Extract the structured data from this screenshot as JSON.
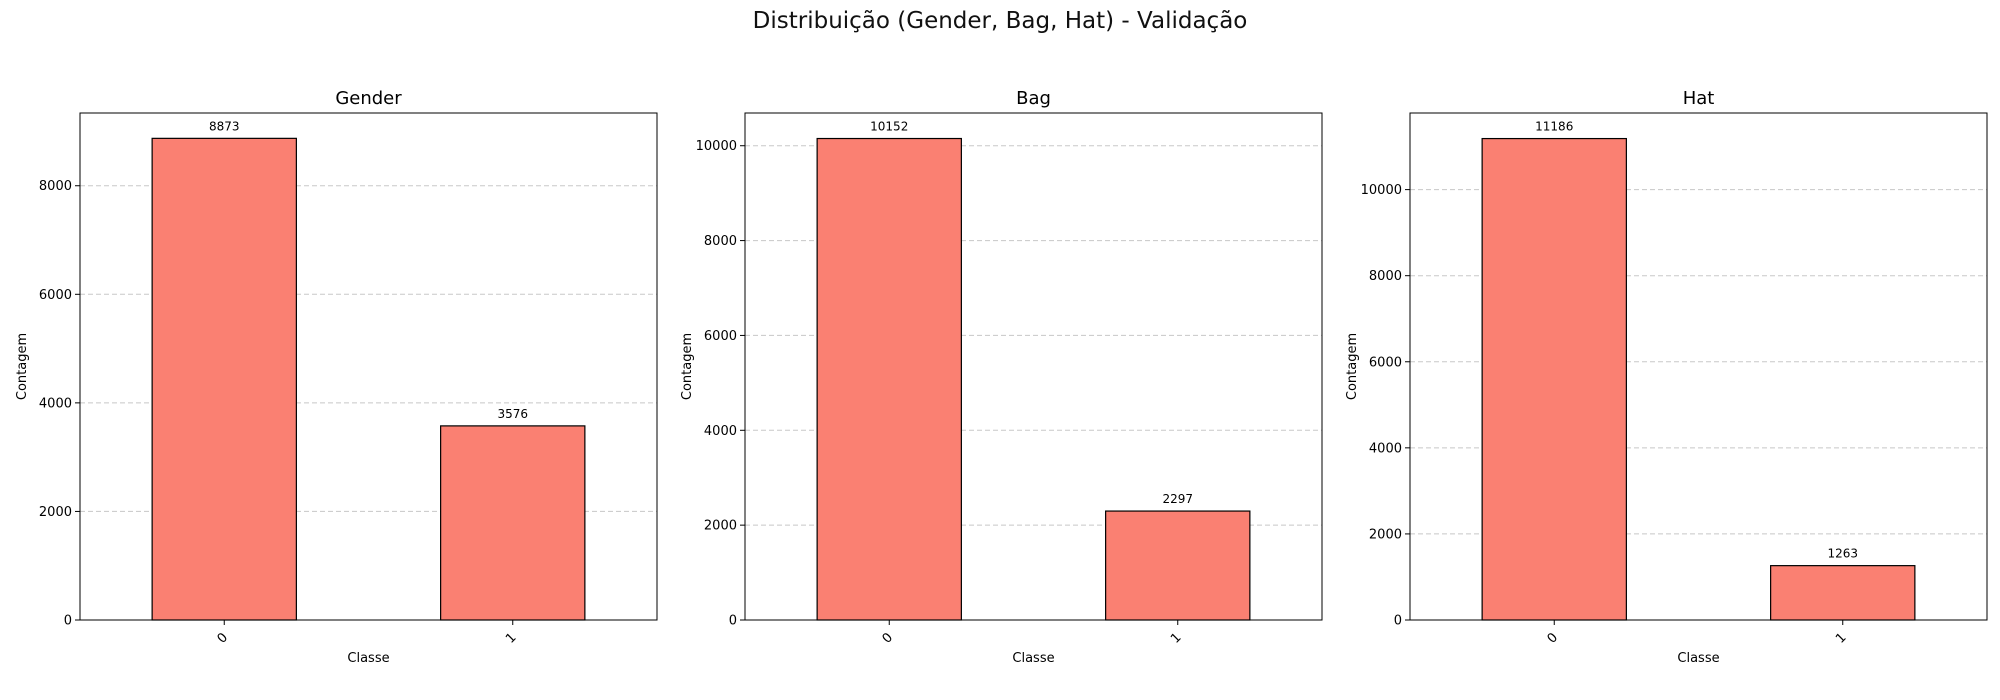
{
  "figure": {
    "title": "Distribuição (Gender, Bag, Hat) - Validação"
  },
  "colors": {
    "bar_fill": "#fa8072",
    "bar_edge": "#000000",
    "grid": "#c8c8c8"
  },
  "chart_data": [
    {
      "type": "bar",
      "title": "Gender",
      "xlabel": "Classe",
      "ylabel": "Contagem",
      "categories": [
        "0",
        "1"
      ],
      "values": [
        8873,
        3576
      ],
      "ylim": [
        0,
        9340
      ],
      "yticks": [
        0,
        2000,
        4000,
        6000,
        8000
      ],
      "grid": "y-dashed",
      "legend": "none"
    },
    {
      "type": "bar",
      "title": "Bag",
      "xlabel": "Classe",
      "ylabel": "Contagem",
      "categories": [
        "0",
        "1"
      ],
      "values": [
        10152,
        2297
      ],
      "ylim": [
        0,
        10690
      ],
      "yticks": [
        0,
        2000,
        4000,
        6000,
        8000,
        10000
      ],
      "grid": "y-dashed",
      "legend": "none"
    },
    {
      "type": "bar",
      "title": "Hat",
      "xlabel": "Classe",
      "ylabel": "Contagem",
      "categories": [
        "0",
        "1"
      ],
      "values": [
        11186,
        1263
      ],
      "ylim": [
        0,
        11780
      ],
      "yticks": [
        0,
        2000,
        4000,
        6000,
        8000,
        10000
      ],
      "grid": "y-dashed",
      "legend": "none"
    }
  ]
}
